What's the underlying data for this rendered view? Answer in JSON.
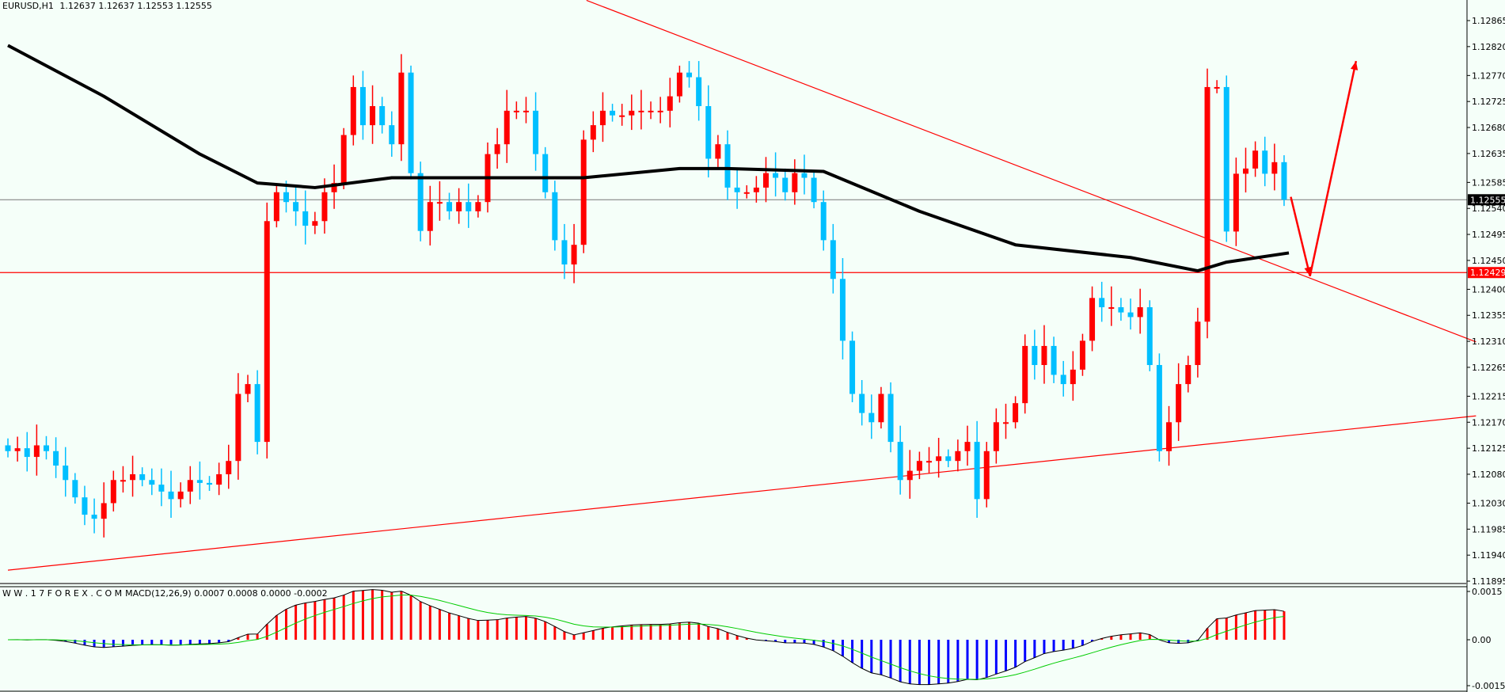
{
  "header": {
    "symbol": "EURUSD,H1",
    "values": "1.12637 1.12637 1.12553 1.12555"
  },
  "macd_header": {
    "source": "W W . 1 7 F O R E X . C O M",
    "label": "MACD(12,26,9) 0.0007 0.0008 0.0000 -0.0002"
  },
  "colors": {
    "bull": "#ff0000",
    "bear": "#00bfff",
    "ma": "#000000",
    "trend": "#ff0000",
    "signal": "#00cc00",
    "bg": "#f5fff9"
  },
  "chart_data": {
    "type": "candlestick",
    "title": "EURUSD,H1",
    "ylim": [
      1.11895,
      1.12865
    ],
    "price_ticks": [
      "1.12865",
      "1.12820",
      "1.12770",
      "1.12725",
      "1.12680",
      "1.12635",
      "1.12585",
      "1.12540",
      "1.12495",
      "1.12450",
      "1.12400",
      "1.12355",
      "1.12310",
      "1.12265",
      "1.12215",
      "1.12170",
      "1.12125",
      "1.12080",
      "1.12030",
      "1.11985",
      "1.11940",
      "1.11895"
    ],
    "current_price": {
      "value": 1.12555,
      "label": "1.12555"
    },
    "level_line": {
      "value": 1.12429,
      "label": "1.12429"
    },
    "closes": [
      1.1212,
      1.12125,
      1.1211,
      1.1213,
      1.1212,
      1.12095,
      1.1207,
      1.1204,
      1.1201,
      1.12003,
      1.1203,
      1.1207,
      1.1207,
      1.1208,
      1.1207,
      1.12062,
      1.1205,
      1.12037,
      1.1205,
      1.1207,
      1.12065,
      1.12062,
      1.1208,
      1.12103,
      1.12219,
      1.12236,
      1.12136,
      1.12518,
      1.12568,
      1.12551,
      1.12535,
      1.1251,
      1.12518,
      1.12568,
      1.12584,
      1.12667,
      1.1275,
      1.12684,
      1.12717,
      1.12684,
      1.12651,
      1.12775,
      1.12601,
      1.12501,
      1.12551,
      1.12551,
      1.12535,
      1.12551,
      1.12535,
      1.12551,
      1.12634,
      1.12651,
      1.12709,
      1.12709,
      1.12709,
      1.12634,
      1.12568,
      1.12485,
      1.12443,
      1.12477,
      1.12659,
      1.12684,
      1.12709,
      1.12701,
      1.12701,
      1.12709,
      1.12709,
      1.12709,
      1.12709,
      1.12734,
      1.12775,
      1.12767,
      1.12717,
      1.12626,
      1.12651,
      1.12576,
      1.12568,
      1.12568,
      1.12576,
      1.12601,
      1.12593,
      1.12568,
      1.12601,
      1.12593,
      1.12551,
      1.12485,
      1.12418,
      1.12311,
      1.12219,
      1.12186,
      1.1217,
      1.12219,
      1.12136,
      1.1207,
      1.12086,
      1.12103,
      1.12103,
      1.12111,
      1.12103,
      1.1212,
      1.12136,
      1.12037,
      1.1212,
      1.1217,
      1.1217,
      1.12203,
      1.12302,
      1.12269,
      1.12302,
      1.12252,
      1.12236,
      1.12261,
      1.12311,
      1.12385,
      1.12369,
      1.12369,
      1.1236,
      1.12352,
      1.12369,
      1.12269,
      1.1212,
      1.1217,
      1.12236,
      1.12269,
      1.12344,
      1.1275,
      1.1275,
      1.125,
      1.126,
      1.12609,
      1.1264,
      1.126,
      1.1262,
      1.12555
    ],
    "moving_average": [
      [
        0,
        1.12822
      ],
      [
        10,
        1.12734
      ],
      [
        20,
        1.12634
      ],
      [
        26,
        1.12584
      ],
      [
        32,
        1.12576
      ],
      [
        40,
        1.12593
      ],
      [
        50,
        1.12593
      ],
      [
        60,
        1.12593
      ],
      [
        70,
        1.12609
      ],
      [
        75,
        1.12609
      ],
      [
        85,
        1.12604
      ],
      [
        95,
        1.12535
      ],
      [
        105,
        1.12477
      ],
      [
        117,
        1.12455
      ],
      [
        124,
        1.12432
      ],
      [
        127,
        1.12447
      ],
      [
        133.5,
        1.12463
      ]
    ],
    "trendlines": [
      {
        "name": "resistance",
        "from": [
          60.3,
          1.129
        ],
        "to": [
          153,
          1.12309
        ]
      },
      {
        "name": "support",
        "from": [
          0,
          1.11914
        ],
        "to": [
          153,
          1.12181
        ]
      }
    ],
    "arrow": [
      [
        133.7,
        1.1256
      ],
      [
        135.7,
        1.12423
      ],
      [
        140.5,
        1.12795
      ]
    ],
    "macd": {
      "params": [
        12,
        26,
        9
      ],
      "ylim": [
        -0.0015,
        0.0015
      ],
      "ticks": [
        "0.0015",
        "0.00",
        "-0.0015"
      ]
    }
  }
}
